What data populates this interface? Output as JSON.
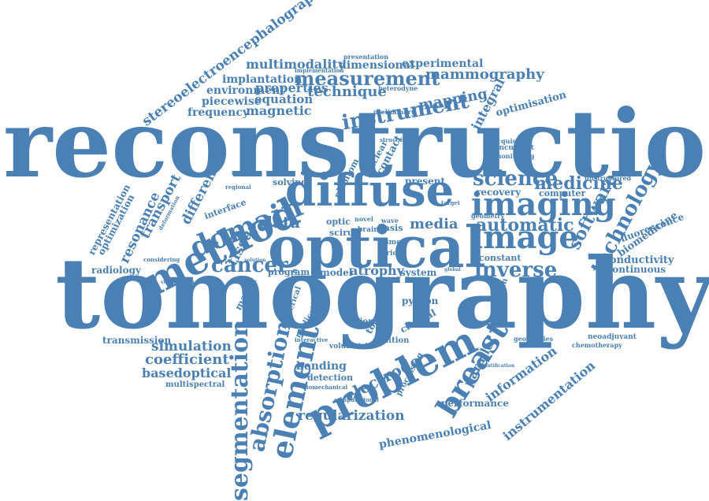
{
  "text_color": "#4a80b4",
  "words": [
    "reconstruction",
    "tomography",
    "optical",
    "diffuse",
    "method",
    "problem",
    "element",
    "imaging",
    "image",
    "segmentation",
    "absorption",
    "domain",
    "cancer",
    "breast",
    "technology",
    "inverse",
    "automatic",
    "science",
    "medicine",
    "software",
    "instrument",
    "measurement",
    "mammography",
    "multimodality",
    "dimensional",
    "experimental",
    "stereoelectroencephalography",
    "implantation",
    "environment",
    "properties",
    "technique",
    "piecewise",
    "equation",
    "frequency",
    "magnetic",
    "mapping",
    "integral",
    "optimisation",
    "transport",
    "resonance",
    "representation",
    "optimization",
    "radiology",
    "tissue",
    "different",
    "data",
    "media",
    "atrophy",
    "python",
    "transmission",
    "simulation",
    "coefficient",
    "basedoptical",
    "multispectral",
    "bending",
    "electrode",
    "regularization",
    "phenomenological",
    "performance",
    "parallel",
    "information",
    "instrumentation",
    "fluorescence",
    "biomedicine",
    "conductivity",
    "continuous",
    "constant",
    "recovery",
    "computer",
    "present",
    "solving",
    "model",
    "program",
    "system",
    "clinical",
    "region",
    "position",
    "detection",
    "volumetric",
    "toast",
    "phantom",
    "contact",
    "nuclear",
    "matrix",
    "interface",
    "brain",
    "wavelength",
    "geometries",
    "chemotherapy",
    "neoadjuvant",
    "concurrent",
    "monitoring",
    "acquisition",
    "presentation",
    "implementation",
    "heterodyne",
    "preliminary",
    "unstructured",
    "geometry",
    "processing",
    "computational",
    "biomechanical",
    "numerical",
    "medical",
    "approach",
    "optic",
    "scirun",
    "basis",
    "time",
    "prior",
    "novel",
    "wave",
    "target",
    "interactive",
    "considering",
    "deformation",
    "localization",
    "regional",
    "structure",
    "solution",
    "visualization",
    "global",
    "quantification"
  ]
}
